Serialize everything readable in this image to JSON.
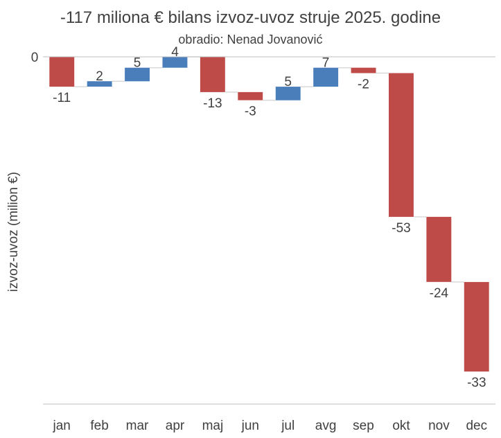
{
  "chart_data": {
    "type": "waterfall",
    "title": "-117 miliona € bilans izvoz-uvoz struje 2025. godine",
    "subtitle": "obradio: Nenad Jovanović",
    "ylabel": "izvoz-uvoz (milion €)",
    "xlabel": "",
    "zero_tick_label": "0",
    "categories": [
      "jan",
      "feb",
      "mar",
      "apr",
      "maj",
      "jun",
      "jul",
      "avg",
      "sep",
      "okt",
      "nov",
      "dec"
    ],
    "values": [
      -11,
      2,
      5,
      4,
      -13,
      -3,
      5,
      7,
      -2,
      -53,
      -24,
      -33
    ],
    "value_labels": [
      "-11",
      "2",
      "5",
      "4",
      "-13",
      "-3",
      "5",
      "7",
      "-2",
      "-53",
      "-24",
      "-33"
    ],
    "total": -117,
    "ylim": [
      -128,
      0
    ],
    "colors": {
      "positive": "#4a7ebb",
      "negative": "#be4b48",
      "connector": "#d9d9d9",
      "axis": "#bfbfbf"
    }
  }
}
